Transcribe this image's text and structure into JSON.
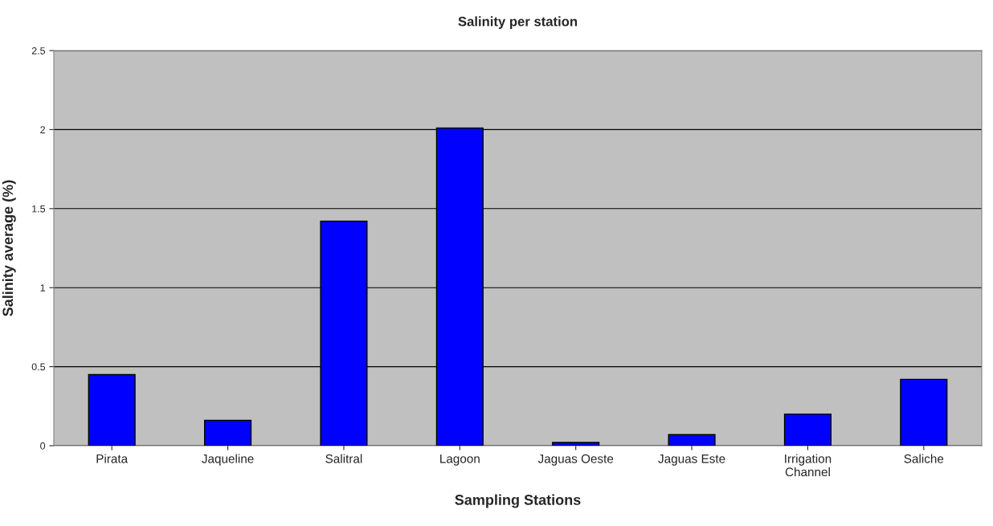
{
  "chart_data": {
    "type": "bar",
    "title": "Salinity per station",
    "xlabel": "Sampling Stations",
    "ylabel": "Salinity average (%)",
    "categories": [
      "Pirata",
      "Jaqueline",
      "Salitral",
      "Lagoon",
      "Jaguas Oeste",
      "Jaguas Este",
      "Irrigation\nChannel",
      "Saliche"
    ],
    "values": [
      0.45,
      0.16,
      1.42,
      2.01,
      0.02,
      0.07,
      0.2,
      0.42
    ],
    "color": "#0000ff",
    "ylim": [
      0,
      2.5
    ],
    "yticks": [
      0,
      {
        "value": 0.5,
        "label": "0.5"
      },
      1,
      {
        "value": 1.5,
        "label": "1.5"
      },
      2,
      {
        "value": 2.5,
        "label": "2.5"
      }
    ],
    "grid": "y",
    "legend": false
  }
}
